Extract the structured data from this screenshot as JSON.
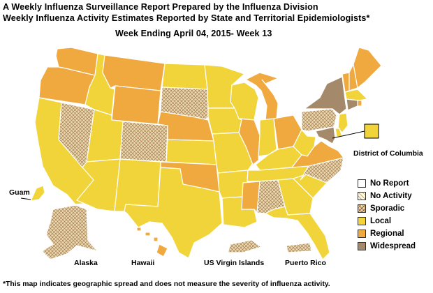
{
  "header": {
    "title_line1": "A Weekly Influenza Surveillance Report Prepared by the Influenza Division",
    "title_line2": "Weekly Influenza Activity Estimates Reported by State and Territorial Epidemiologists*",
    "week_label": "Week Ending April 04, 2015- Week 13"
  },
  "colors": {
    "no_report": "#ffffff",
    "no_activity": "#fffbe6",
    "sporadic": "#e6d3a4",
    "local": "#f1d43a",
    "regional": "#efa93e",
    "widespread": "#a48a6a",
    "border": "#ffffff",
    "outline": "#555555"
  },
  "legend": [
    {
      "key": "no_report",
      "label": "No Report"
    },
    {
      "key": "no_activity",
      "label": "No Activity"
    },
    {
      "key": "sporadic",
      "label": "Sporadic"
    },
    {
      "key": "local",
      "label": "Local"
    },
    {
      "key": "regional",
      "label": "Regional"
    },
    {
      "key": "widespread",
      "label": "Widespread"
    }
  ],
  "activity_by_state": {
    "WA": "regional",
    "OR": "regional",
    "CA": "local",
    "NV": "sporadic",
    "ID": "local",
    "MT": "regional",
    "WY": "regional",
    "UT": "local",
    "AZ": "local",
    "CO": "sporadic",
    "NM": "local",
    "ND": "local",
    "SD": "sporadic",
    "NE": "regional",
    "KS": "local",
    "OK": "regional",
    "TX": "local",
    "MN": "local",
    "IA": "local",
    "MO": "local",
    "AR": "local",
    "LA": "local",
    "WI": "local",
    "IL": "regional",
    "MI": "regional",
    "IN": "local",
    "OH": "regional",
    "KY": "local",
    "TN": "local",
    "MS": "regional",
    "AL": "sporadic",
    "GA": "local",
    "FL": "local",
    "SC": "local",
    "NC": "sporadic",
    "VA": "regional",
    "WV": "local",
    "PA": "sporadic",
    "NY": "widespread",
    "VT": "regional",
    "NH": "regional",
    "ME": "regional",
    "MA": "local",
    "RI": "regional",
    "CT": "widespread",
    "NJ": "local",
    "DE": "local",
    "MD": "widespread",
    "DC": "local",
    "AK": "sporadic",
    "HI": "regional",
    "GU": "local",
    "VI": "sporadic",
    "PR": "sporadic"
  },
  "labels": {
    "district_of_columbia": "District of Columbia",
    "guam": "Guam",
    "alaska": "Alaska",
    "hawaii": "Hawaii",
    "us_virgin_islands": "US Virgin Islands",
    "puerto_rico": "Puerto Rico"
  },
  "footnote": "*This map indicates geographic spread and does not measure the severity of influenza activity."
}
